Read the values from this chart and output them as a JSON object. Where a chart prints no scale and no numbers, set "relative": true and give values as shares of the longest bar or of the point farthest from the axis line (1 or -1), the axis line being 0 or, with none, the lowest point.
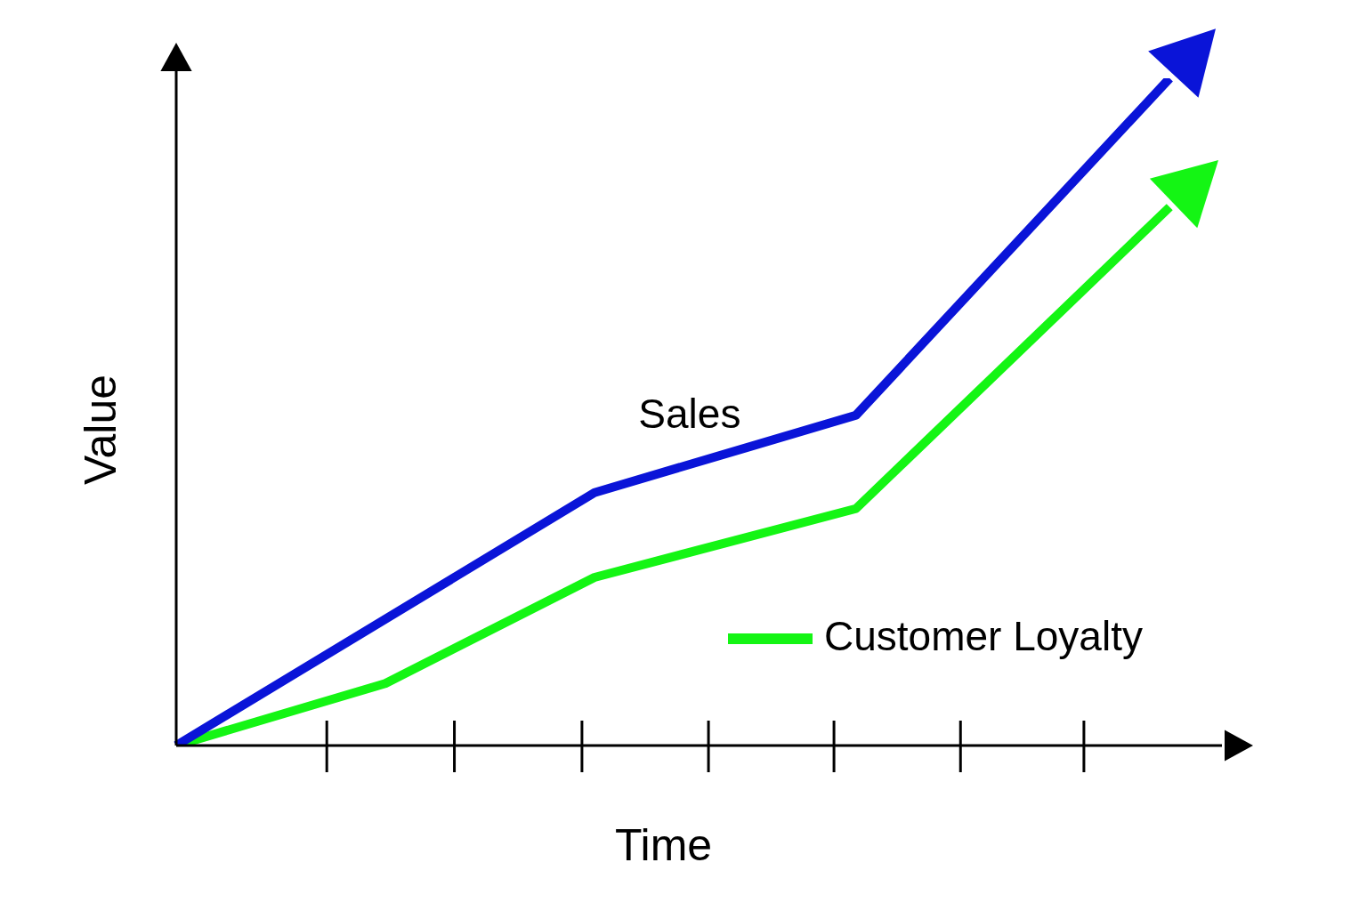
{
  "chart_data": {
    "type": "line",
    "relative": true,
    "xlabel": "Time",
    "ylabel": "Value",
    "categories": [
      null,
      null,
      null,
      null,
      null,
      null,
      null,
      null,
      null,
      null,
      null,
      null,
      null,
      null,
      null,
      null,
      null,
      null,
      null,
      null,
      null
    ],
    "series": [
      {
        "name": "Sales",
        "color": "#0a14d8",
        "values": [
          0,
          null,
          null,
          null,
          null,
          null,
          null,
          null,
          0.379,
          null,
          null,
          null,
          null,
          0.495,
          null,
          null,
          null,
          null,
          null,
          1,
          null
        ]
      },
      {
        "name": "Customer Loyalty",
        "color": "#14f514",
        "values": [
          0,
          null,
          null,
          null,
          0.093,
          null,
          null,
          null,
          0.252,
          null,
          null,
          null,
          null,
          0.355,
          null,
          null,
          null,
          null,
          null,
          0.807,
          null
        ]
      }
    ],
    "marker": "none",
    "line_style": "solid",
    "legend": "bottom right"
  }
}
